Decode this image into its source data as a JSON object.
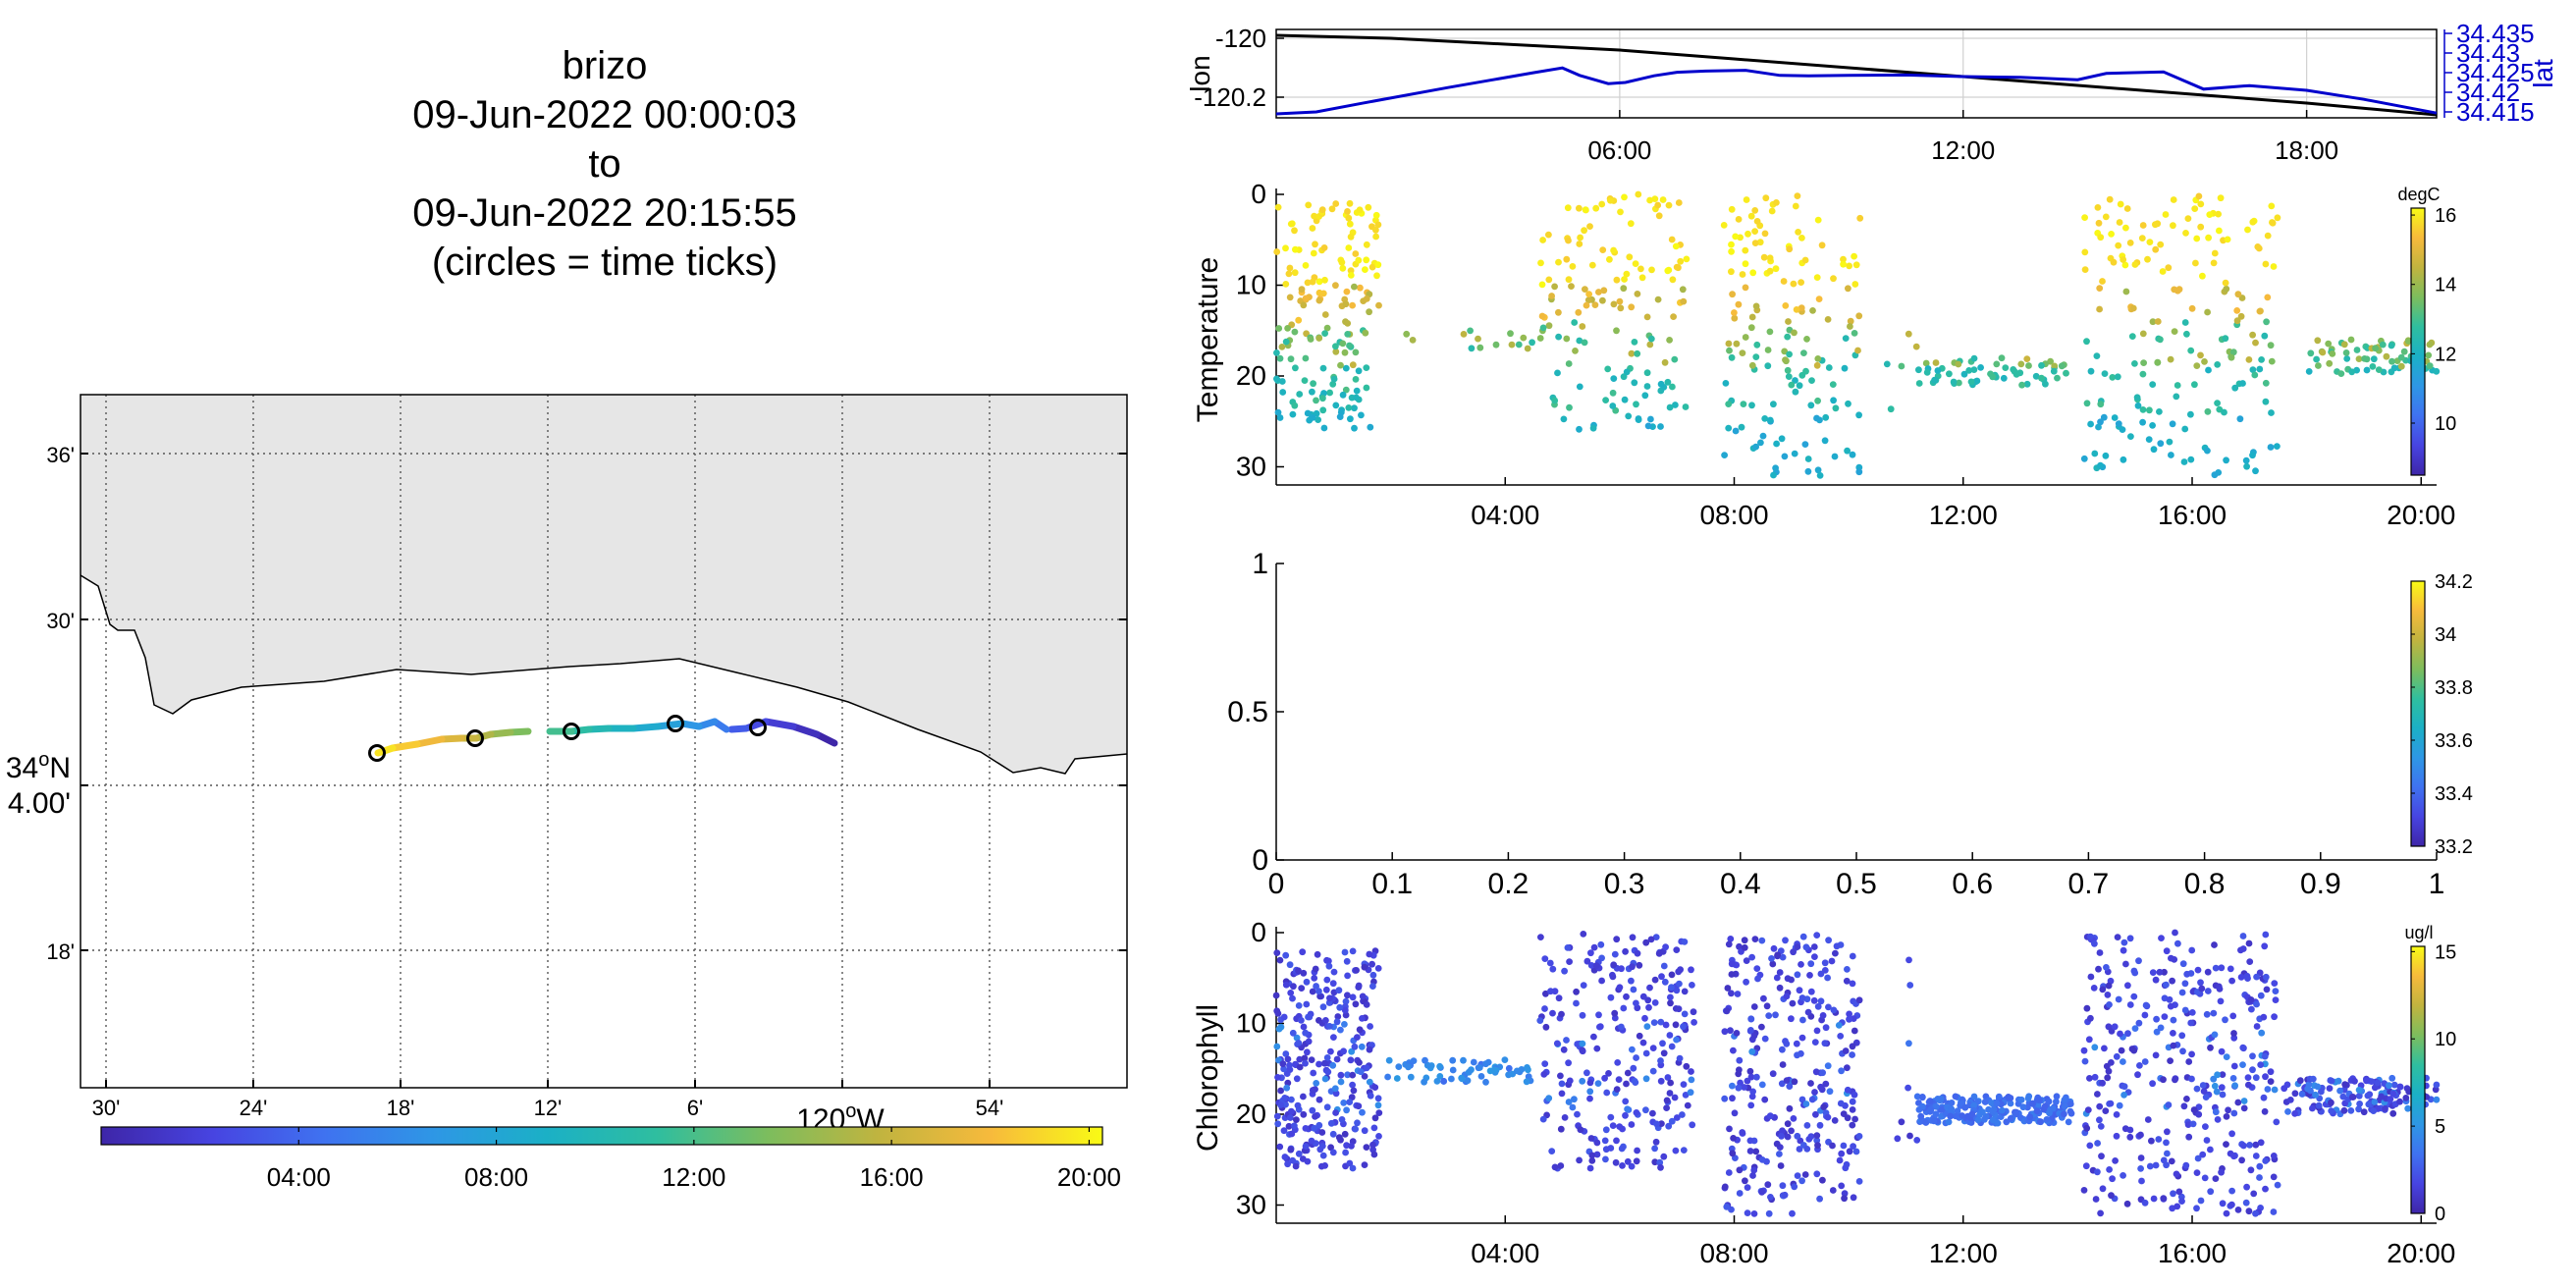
{
  "header": {
    "title": "brizo",
    "start": "09-Jun-2022 00:00:03",
    "to": "to",
    "end": "09-Jun-2022 20:15:55",
    "note": "(circles = time ticks)"
  },
  "colors": {
    "land": "#e6e6e6",
    "lon_line": "#000000",
    "lat_line": "#0000cc",
    "colormap": [
      "#3e26a8",
      "#4744e1",
      "#3f72f0",
      "#2e97e5",
      "#1bb0c6",
      "#2fbe9f",
      "#7dbd5d",
      "#c1b43f",
      "#f7ba3c",
      "#f9fb15"
    ]
  },
  "map": {
    "lat_ticks": [
      "36'",
      "30'",
      "34ºN\n4.00'",
      "18'"
    ],
    "lon_ticks": [
      "30'",
      "24'",
      "18'",
      "12'",
      "6'",
      "120ºW",
      "54'"
    ],
    "lat_label_deg": "34",
    "lat_label_dir": "N",
    "lat_label_min": "4.00'",
    "lon_label_deg": "120",
    "lon_label_dir": "W",
    "colorbar_ticks": [
      "04:00",
      "08:00",
      "12:00",
      "16:00",
      "20:00"
    ],
    "track_time_range_h": [
      0,
      20.27
    ]
  },
  "chart_data": [
    {
      "type": "line",
      "title": "",
      "xlabel": "",
      "x_ticks": [
        "06:00",
        "12:00",
        "18:00"
      ],
      "xlim_h": [
        0,
        20.27
      ],
      "grid": true,
      "series": [
        {
          "name": "lon",
          "axis": "left",
          "ylabel": "lon",
          "y_ticks": [
            "-120",
            "-120.2"
          ],
          "ylim": [
            -120.27,
            -119.97
          ],
          "x_h": [
            0,
            2,
            4,
            6,
            8,
            10,
            12,
            14,
            16,
            18,
            20.27
          ],
          "values": [
            -119.99,
            -120.0,
            -120.02,
            -120.04,
            -120.07,
            -120.1,
            -120.13,
            -120.16,
            -120.19,
            -120.22,
            -120.26
          ]
        },
        {
          "name": "lat",
          "axis": "right",
          "ylabel": "lat",
          "y_ticks": [
            "34.435",
            "34.43",
            "34.425",
            "34.42",
            "34.415"
          ],
          "ylim": [
            34.4135,
            34.436
          ],
          "x_h": [
            0,
            0.7,
            1.5,
            3,
            4.5,
            5,
            5.3,
            5.8,
            6.1,
            6.6,
            7,
            7.5,
            8.2,
            8.8,
            9.3,
            10,
            11,
            12,
            13,
            14,
            14.5,
            15.5,
            16.2,
            17,
            18,
            19,
            20.27
          ],
          "values": [
            34.4145,
            34.415,
            34.4172,
            34.4212,
            34.425,
            34.4262,
            34.4243,
            34.4222,
            34.4225,
            34.4242,
            34.4251,
            34.4254,
            34.4256,
            34.4243,
            34.4242,
            34.4243,
            34.4244,
            34.424,
            34.4238,
            34.4232,
            34.4248,
            34.4252,
            34.4208,
            34.4217,
            34.4205,
            34.4182,
            34.4147
          ]
        }
      ]
    },
    {
      "type": "scatter",
      "title": "",
      "ylabel": "Temperature",
      "x_ticks": [
        "04:00",
        "08:00",
        "12:00",
        "16:00",
        "20:00"
      ],
      "xlim_h": [
        0,
        20.27
      ],
      "ylim": [
        32,
        0
      ],
      "y_ticks": [
        "0",
        "10",
        "20",
        "30"
      ],
      "colorbar": {
        "unit": "degC",
        "range": [
          8.5,
          16.2
        ],
        "ticks": [
          "16",
          "14",
          "12",
          "10"
        ]
      },
      "clusters": [
        {
          "t": [
            0,
            1.8
          ],
          "depth": [
            1,
            26
          ],
          "n": 180
        },
        {
          "t": [
            1.8,
            4.5
          ],
          "depth": [
            15,
            17
          ],
          "n": 14
        },
        {
          "t": [
            4.6,
            7.2
          ],
          "depth": [
            0,
            26
          ],
          "n": 150
        },
        {
          "t": [
            7.8,
            10.2
          ],
          "depth": [
            0,
            31
          ],
          "n": 160
        },
        {
          "t": [
            10.6,
            11.2
          ],
          "depth": [
            1,
            29
          ],
          "n": 5
        },
        {
          "t": [
            11.2,
            13.8
          ],
          "depth": [
            18,
            21
          ],
          "n": 60
        },
        {
          "t": [
            14.1,
            17.5
          ],
          "depth": [
            0,
            31
          ],
          "n": 200
        },
        {
          "t": [
            18,
            20.27
          ],
          "depth": [
            16,
            20
          ],
          "n": 70
        }
      ]
    },
    {
      "type": "scatter",
      "title": "",
      "ylabel": "",
      "x_ticks": [
        "0",
        "0.1",
        "0.2",
        "0.3",
        "0.4",
        "0.5",
        "0.6",
        "0.7",
        "0.8",
        "0.9",
        "1"
      ],
      "xlim": [
        0,
        1
      ],
      "ylim": [
        0,
        1
      ],
      "y_ticks": [
        "0",
        "0.5",
        "1"
      ],
      "colorbar": {
        "unit": "",
        "range": [
          33.2,
          34.2
        ],
        "ticks": [
          "34.2",
          "34",
          "33.8",
          "33.6",
          "33.4",
          "33.2"
        ]
      },
      "points": []
    },
    {
      "type": "scatter",
      "title": "",
      "ylabel": "Chlorophyll",
      "x_ticks": [
        "04:00",
        "08:00",
        "12:00",
        "16:00",
        "20:00"
      ],
      "xlim_h": [
        0,
        20.27
      ],
      "ylim": [
        32,
        0
      ],
      "y_ticks": [
        "0",
        "10",
        "20",
        "30"
      ],
      "colorbar": {
        "unit": "ug/l",
        "range": [
          0,
          15.3
        ],
        "ticks": [
          "15",
          "10",
          "5",
          "0"
        ]
      },
      "clusters": [
        {
          "t": [
            0,
            1.8
          ],
          "depth": [
            2,
            26
          ],
          "n": 300
        },
        {
          "t": [
            1.8,
            4.5
          ],
          "depth": [
            14,
            16.5
          ],
          "n": 60
        },
        {
          "t": [
            4.6,
            7.3
          ],
          "depth": [
            0,
            26
          ],
          "n": 260
        },
        {
          "t": [
            7.8,
            10.2
          ],
          "depth": [
            0,
            31
          ],
          "n": 300
        },
        {
          "t": [
            10.8,
            11.2
          ],
          "depth": [
            1,
            28
          ],
          "n": 8
        },
        {
          "t": [
            11.2,
            13.9
          ],
          "depth": [
            18,
            21
          ],
          "n": 220
        },
        {
          "t": [
            14.1,
            17.5
          ],
          "depth": [
            0,
            31
          ],
          "n": 360
        },
        {
          "t": [
            17.6,
            20.27
          ],
          "depth": [
            16,
            20
          ],
          "n": 150
        }
      ]
    }
  ]
}
